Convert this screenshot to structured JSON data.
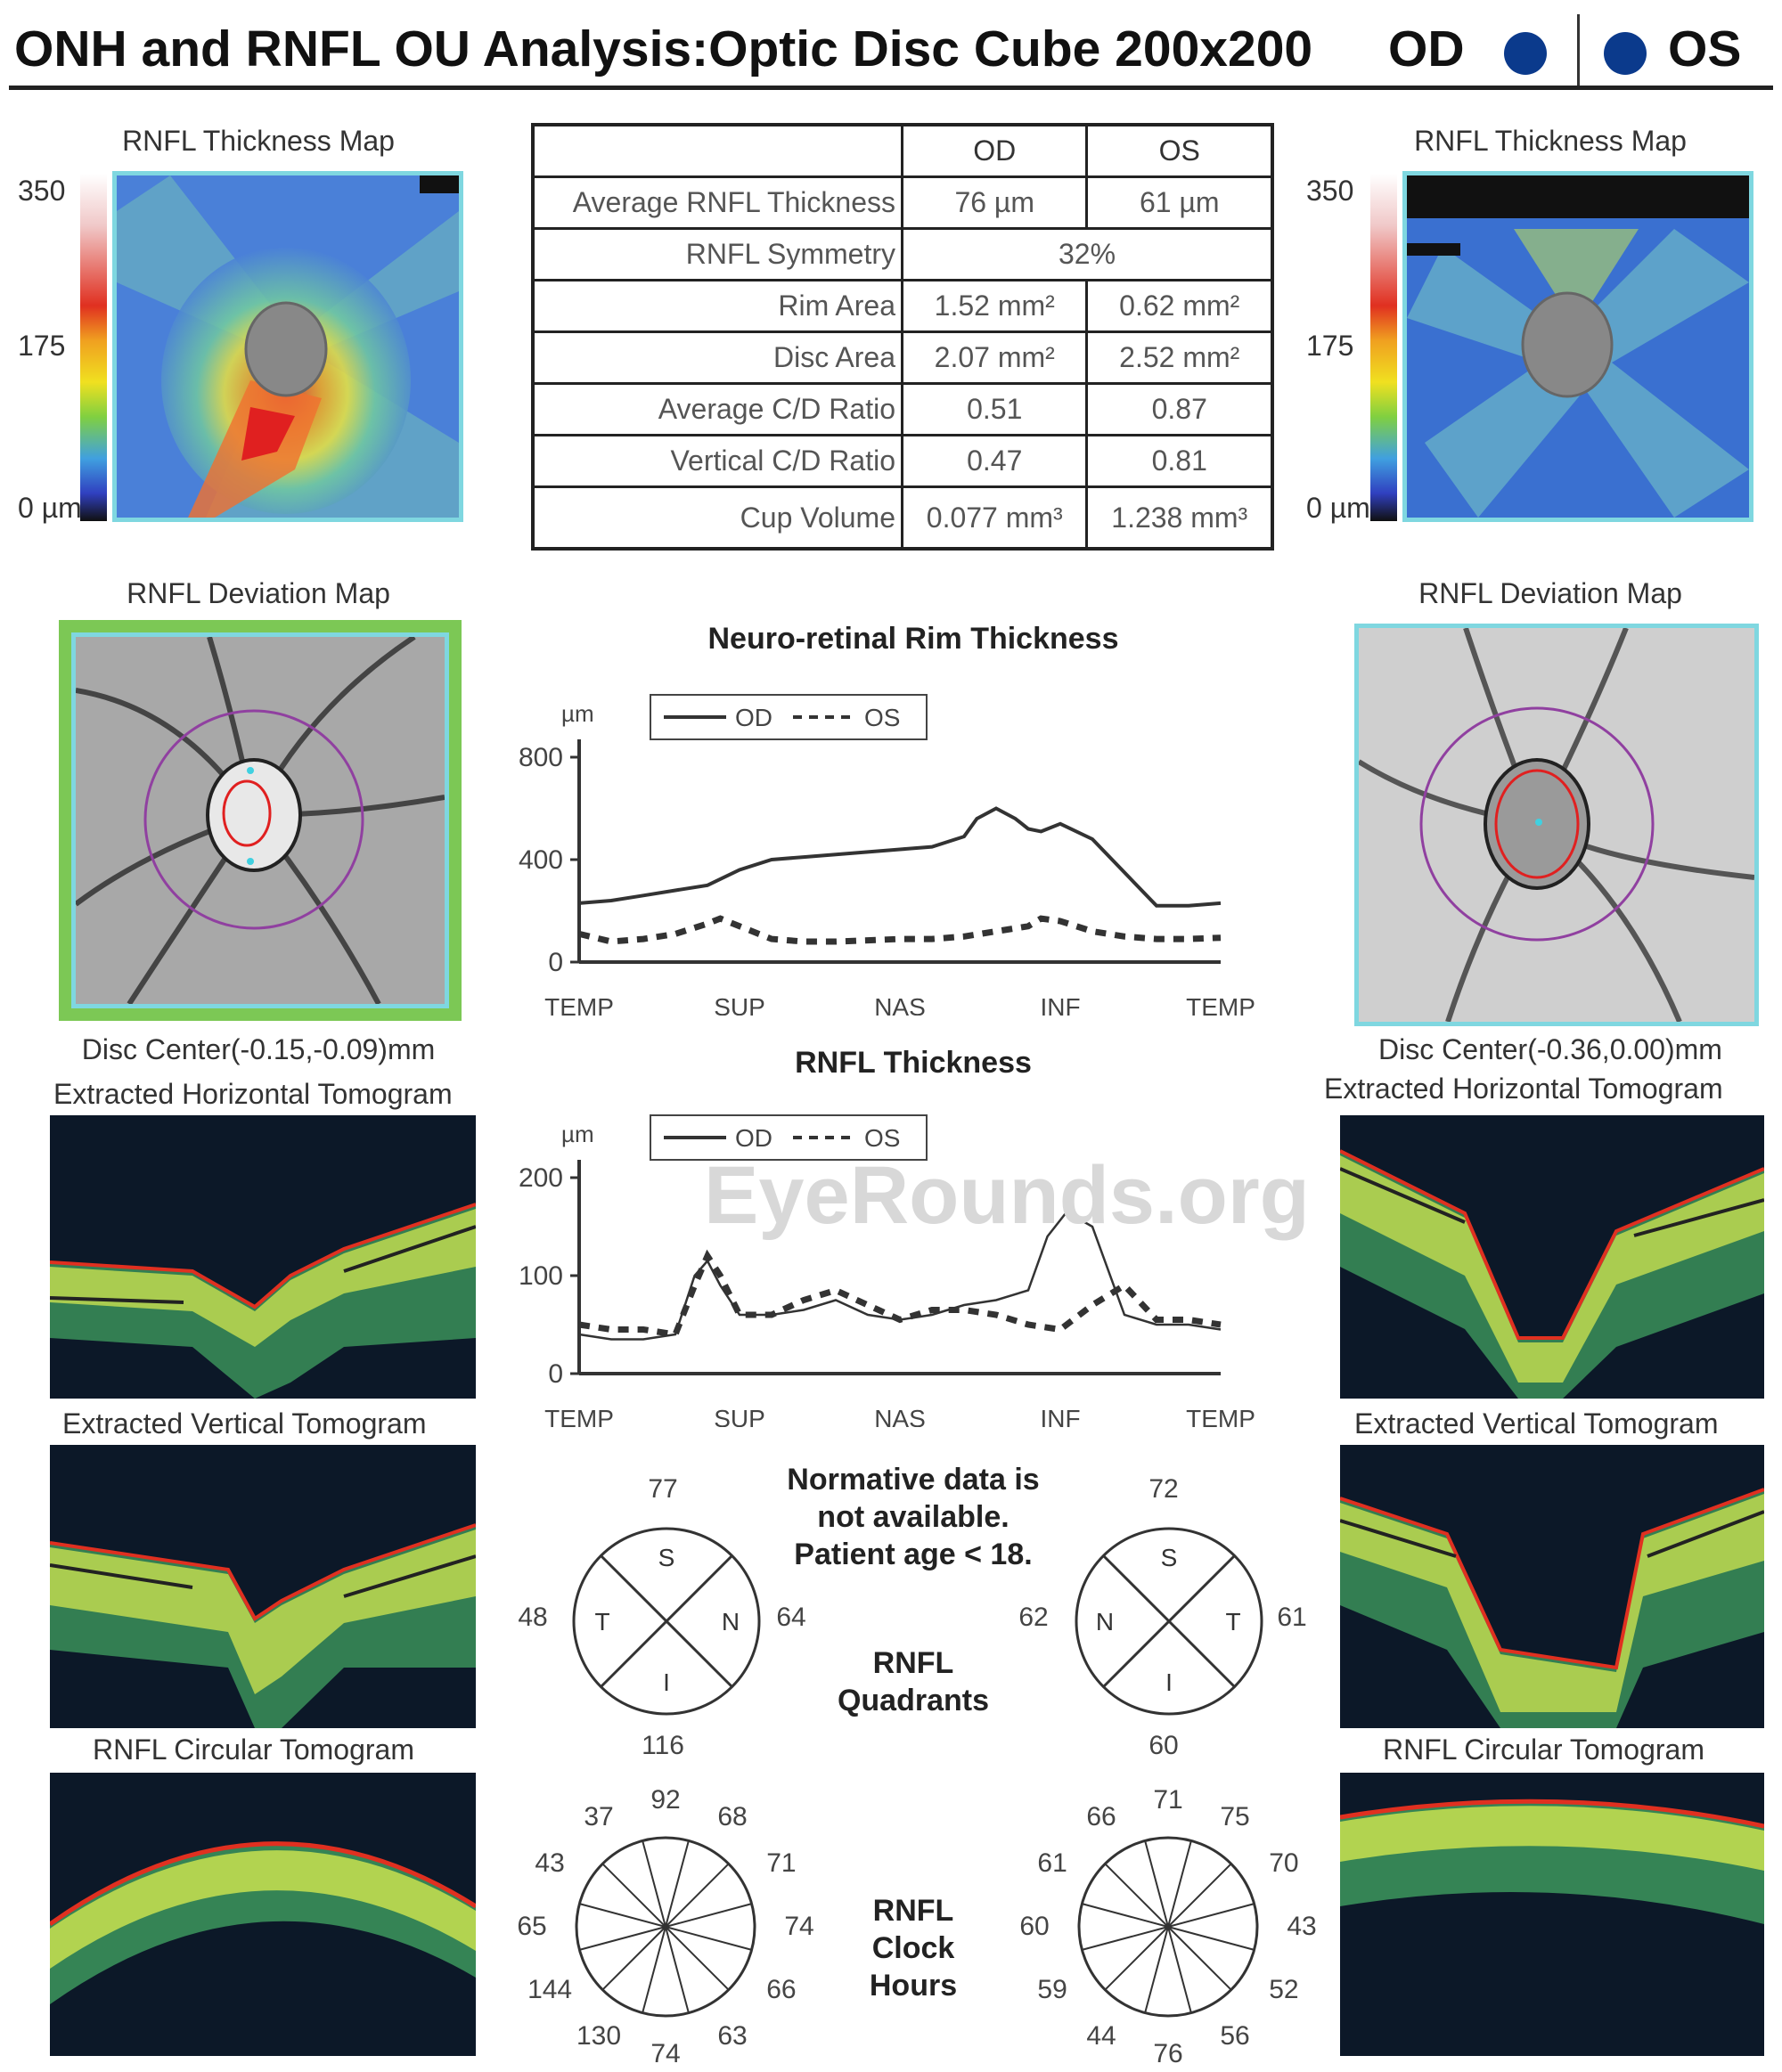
{
  "header": {
    "title": "ONH and RNFL OU Analysis:Optic Disc Cube 200x200",
    "od": "OD",
    "os": "OS"
  },
  "thickness_map": {
    "title": "RNFL Thickness Map",
    "scale_max": "350",
    "scale_mid": "175",
    "scale_min": "0 µm"
  },
  "metrics": {
    "col_od": "OD",
    "col_os": "OS",
    "rows": [
      {
        "label": "Average RNFL Thickness",
        "od": "76 µm",
        "os": "61 µm"
      },
      {
        "label": "RNFL Symmetry",
        "both": "32%"
      },
      {
        "label": "Rim Area",
        "od": "1.52 mm²",
        "os": "0.62 mm²"
      },
      {
        "label": "Disc Area",
        "od": "2.07 mm²",
        "os": "2.52 mm²"
      },
      {
        "label": "Average C/D Ratio",
        "od": "0.51",
        "os": "0.87"
      },
      {
        "label": "Vertical C/D Ratio",
        "od": "0.47",
        "os": "0.81"
      },
      {
        "label": "Cup Volume",
        "od": "0.077 mm³",
        "os": "1.238 mm³"
      }
    ]
  },
  "deviation_map": {
    "title": "RNFL Deviation Map",
    "od_center": "Disc Center(-0.15,-0.09)mm",
    "os_center": "Disc Center(-0.36,0.00)mm"
  },
  "tomograms": {
    "horizontal": "Extracted Horizontal Tomogram",
    "vertical": "Extracted Vertical Tomogram",
    "circular": "RNFL Circular Tomogram"
  },
  "watermark": "EyeRounds.org",
  "note": {
    "line1": "Normative data is",
    "line2": "not available.",
    "line3": "Patient age < 18."
  },
  "quadrants": {
    "title1": "RNFL",
    "title2": "Quadrants",
    "od": {
      "S": "77",
      "I": "116",
      "T": "48",
      "N": "64"
    },
    "os": {
      "S": "72",
      "I": "60",
      "N": "62",
      "T": "61"
    },
    "letters": {
      "S": "S",
      "I": "I",
      "T": "T",
      "N": "N"
    }
  },
  "clock_hours": {
    "title1": "RNFL",
    "title2": "Clock",
    "title3": "Hours",
    "od": [
      "68",
      "71",
      "74",
      "66",
      "63",
      "74",
      "130",
      "144",
      "65",
      "43",
      "37",
      "92"
    ],
    "os": [
      "75",
      "70",
      "43",
      "52",
      "56",
      "76",
      "44",
      "59",
      "60",
      "61",
      "66",
      "71"
    ]
  },
  "chart_data": [
    {
      "type": "line",
      "title": "Neuro-retinal Rim Thickness",
      "ylabel": "µm",
      "ylim": [
        0,
        800
      ],
      "yticks": [
        "800",
        "400",
        "0"
      ],
      "xticks": [
        "TEMP",
        "SUP",
        "NAS",
        "INF",
        "TEMP"
      ],
      "x": [
        0,
        0.25,
        0.5,
        0.75,
        1.0
      ],
      "grid": false,
      "legend": "top",
      "series": [
        {
          "name": "OD",
          "style": "solid",
          "x": [
            0,
            0.05,
            0.1,
            0.15,
            0.2,
            0.25,
            0.3,
            0.35,
            0.4,
            0.45,
            0.5,
            0.55,
            0.6,
            0.62,
            0.65,
            0.68,
            0.7,
            0.72,
            0.75,
            0.8,
            0.85,
            0.9,
            0.95,
            1.0
          ],
          "y": [
            230,
            240,
            260,
            280,
            300,
            360,
            400,
            410,
            420,
            430,
            440,
            450,
            490,
            560,
            600,
            560,
            520,
            510,
            540,
            480,
            350,
            220,
            220,
            230
          ]
        },
        {
          "name": "OS",
          "style": "dashed",
          "x": [
            0,
            0.05,
            0.1,
            0.15,
            0.2,
            0.22,
            0.25,
            0.3,
            0.35,
            0.4,
            0.45,
            0.5,
            0.55,
            0.6,
            0.65,
            0.7,
            0.72,
            0.75,
            0.8,
            0.85,
            0.9,
            0.95,
            1.0
          ],
          "y": [
            110,
            80,
            90,
            110,
            150,
            170,
            140,
            90,
            80,
            80,
            85,
            90,
            90,
            100,
            120,
            140,
            170,
            160,
            120,
            100,
            90,
            90,
            95
          ]
        }
      ]
    },
    {
      "type": "line",
      "title": "RNFL Thickness",
      "ylabel": "µm",
      "ylim": [
        0,
        200
      ],
      "yticks": [
        "200",
        "100",
        "0"
      ],
      "xticks": [
        "TEMP",
        "SUP",
        "NAS",
        "INF",
        "TEMP"
      ],
      "x": [
        0,
        0.25,
        0.5,
        0.75,
        1.0
      ],
      "grid": false,
      "legend": "top",
      "series": [
        {
          "name": "OD",
          "style": "solid",
          "x": [
            0,
            0.05,
            0.1,
            0.15,
            0.18,
            0.2,
            0.22,
            0.25,
            0.3,
            0.35,
            0.4,
            0.45,
            0.5,
            0.55,
            0.6,
            0.65,
            0.7,
            0.73,
            0.76,
            0.8,
            0.85,
            0.9,
            0.95,
            1.0
          ],
          "y": [
            40,
            35,
            35,
            40,
            100,
            115,
            90,
            60,
            60,
            65,
            75,
            60,
            55,
            60,
            70,
            75,
            85,
            140,
            165,
            150,
            60,
            50,
            50,
            45
          ]
        },
        {
          "name": "OS",
          "style": "dashed",
          "x": [
            0,
            0.05,
            0.1,
            0.15,
            0.18,
            0.2,
            0.22,
            0.25,
            0.3,
            0.35,
            0.4,
            0.45,
            0.5,
            0.55,
            0.6,
            0.65,
            0.7,
            0.75,
            0.8,
            0.85,
            0.9,
            0.95,
            1.0
          ],
          "y": [
            50,
            45,
            45,
            40,
            90,
            120,
            100,
            60,
            60,
            75,
            85,
            70,
            55,
            65,
            65,
            60,
            50,
            45,
            70,
            90,
            55,
            55,
            50
          ]
        }
      ]
    }
  ]
}
